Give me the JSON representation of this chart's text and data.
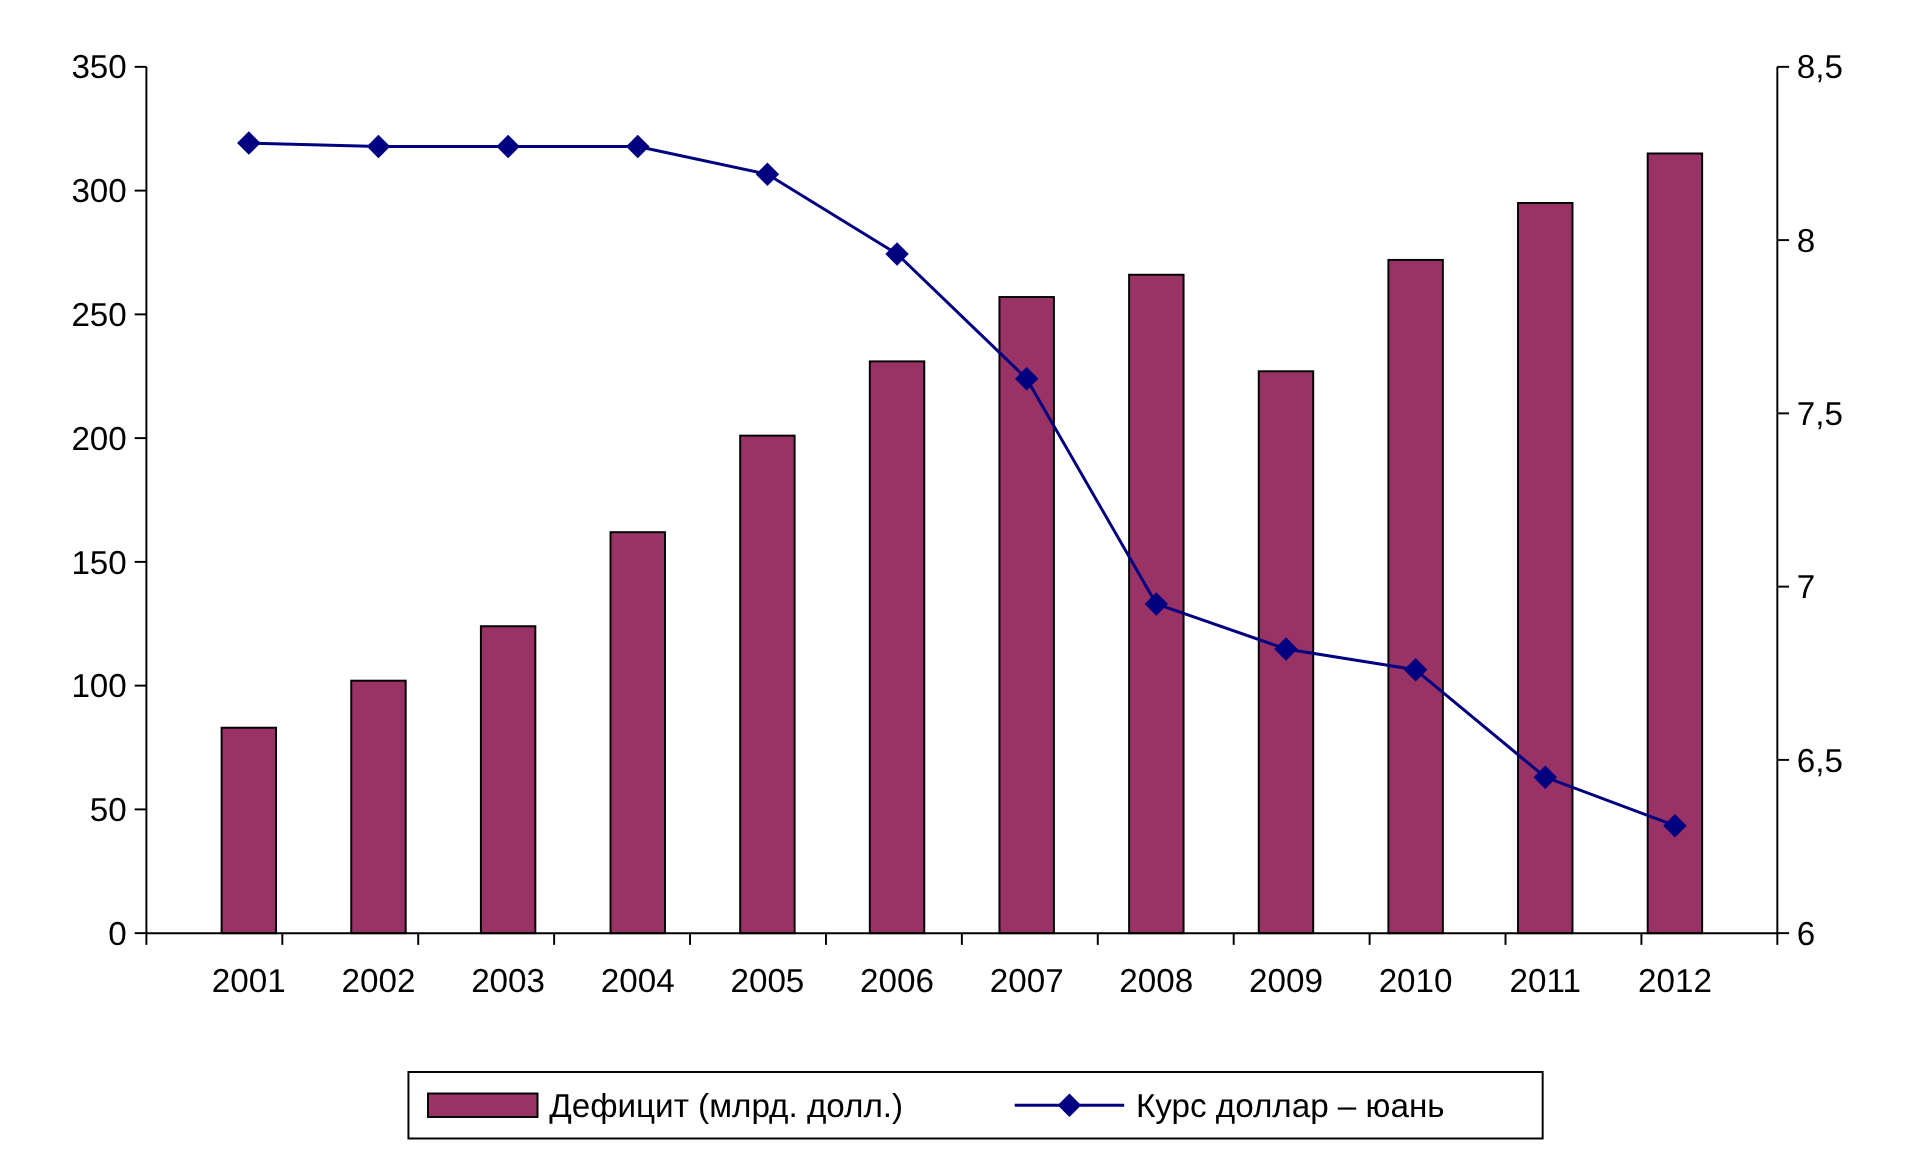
{
  "chart_data": {
    "type": "bar",
    "categories": [
      "2001",
      "2002",
      "2003",
      "2004",
      "2005",
      "2006",
      "2007",
      "2008",
      "2009",
      "2010",
      "2011",
      "2012"
    ],
    "series": [
      {
        "name": "Дефицит (млрд. долл.)",
        "color": "#993366",
        "values": [
          83,
          102,
          124,
          162,
          201,
          231,
          257,
          266,
          227,
          272,
          295,
          315
        ]
      },
      {
        "name": "Курс доллар – юань",
        "type": "line",
        "axis": "y2",
        "color": "#000080",
        "marker": "diamond",
        "values": [
          8.28,
          8.27,
          8.27,
          8.27,
          8.19,
          7.96,
          7.6,
          6.95,
          6.82,
          6.76,
          6.45,
          6.31
        ]
      }
    ],
    "ylim": [
      0,
      350
    ],
    "yticks": [
      0,
      50,
      100,
      150,
      200,
      250,
      300,
      350
    ],
    "y2lim": [
      6,
      8.5
    ],
    "y2ticks": [
      6,
      {
        "value": 6.5,
        "label": "6,5"
      },
      7,
      {
        "value": 7.5,
        "label": "7,5"
      },
      8,
      {
        "value": 8.5,
        "label": "8,5"
      }
    ],
    "grid": false,
    "legend": "bottom"
  }
}
